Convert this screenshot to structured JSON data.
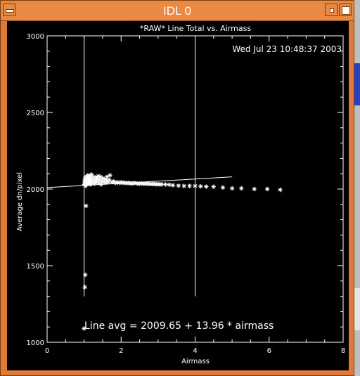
{
  "window": {
    "title": "IDL 0",
    "menu_icon": "window-menu-icon",
    "minimize_icon": "minimize-icon",
    "maximize_icon": "maximize-icon"
  },
  "plot": {
    "timestamp": "Wed Jul 23 10:48:37 2003",
    "annotation": "Line avg = 2009.65 + 13.96 * airmass"
  },
  "chart_data": {
    "type": "scatter",
    "title": "*RAW* Line Total vs. Airmass",
    "xlabel": "Airmass",
    "ylabel": "Average dn/pixel",
    "xlim": [
      0,
      8
    ],
    "ylim": [
      1000,
      3000
    ],
    "x_ticks": [
      "0",
      "2",
      "4",
      "6",
      "8"
    ],
    "y_ticks": [
      "1000",
      "1500",
      "2000",
      "2500",
      "3000"
    ],
    "vertical_lines": [
      1.0,
      4.0
    ],
    "fit_line": {
      "intercept": 2009.65,
      "slope": 13.96,
      "x_range": [
        0,
        5
      ]
    },
    "series": [
      {
        "marker": "asterisk",
        "points": [
          [
            1.0,
            1090
          ],
          [
            1.02,
            1360
          ],
          [
            1.03,
            1440
          ],
          [
            1.05,
            1890
          ],
          [
            1.0,
            2030
          ],
          [
            1.01,
            2050
          ],
          [
            1.02,
            2070
          ],
          [
            1.03,
            2040
          ],
          [
            1.04,
            2020
          ],
          [
            1.05,
            2060
          ],
          [
            1.06,
            2080
          ],
          [
            1.07,
            2030
          ],
          [
            1.08,
            2045
          ],
          [
            1.09,
            2065
          ],
          [
            1.1,
            2090
          ],
          [
            1.11,
            2035
          ],
          [
            1.12,
            2055
          ],
          [
            1.13,
            2075
          ],
          [
            1.14,
            2040
          ],
          [
            1.15,
            2060
          ],
          [
            1.16,
            2085
          ],
          [
            1.17,
            2030
          ],
          [
            1.18,
            2050
          ],
          [
            1.19,
            2070
          ],
          [
            1.2,
            2095
          ],
          [
            1.22,
            2040
          ],
          [
            1.24,
            2060
          ],
          [
            1.26,
            2080
          ],
          [
            1.28,
            2035
          ],
          [
            1.3,
            2055
          ],
          [
            1.32,
            2075
          ],
          [
            1.34,
            2045
          ],
          [
            1.36,
            2065
          ],
          [
            1.38,
            2085
          ],
          [
            1.4,
            2040
          ],
          [
            1.42,
            2060
          ],
          [
            1.44,
            2080
          ],
          [
            1.46,
            2030
          ],
          [
            1.48,
            2050
          ],
          [
            1.5,
            2070
          ],
          [
            1.52,
            2045
          ],
          [
            1.55,
            2065
          ],
          [
            1.58,
            2040
          ],
          [
            1.6,
            2060
          ],
          [
            1.62,
            2080
          ],
          [
            1.65,
            2045
          ],
          [
            1.68,
            2060
          ],
          [
            1.7,
            2090
          ],
          [
            1.75,
            2045
          ],
          [
            1.8,
            2050
          ],
          [
            1.85,
            2040
          ],
          [
            1.9,
            2045
          ],
          [
            1.95,
            2040
          ],
          [
            2.0,
            2045
          ],
          [
            2.05,
            2040
          ],
          [
            2.1,
            2042
          ],
          [
            2.15,
            2038
          ],
          [
            2.2,
            2040
          ],
          [
            2.25,
            2038
          ],
          [
            2.3,
            2036
          ],
          [
            2.35,
            2040
          ],
          [
            2.4,
            2038
          ],
          [
            2.45,
            2036
          ],
          [
            2.5,
            2035
          ],
          [
            2.55,
            2037
          ],
          [
            2.6,
            2035
          ],
          [
            2.65,
            2034
          ],
          [
            2.7,
            2036
          ],
          [
            2.75,
            2033
          ],
          [
            2.8,
            2034
          ],
          [
            2.85,
            2032
          ],
          [
            2.9,
            2033
          ],
          [
            2.95,
            2031
          ],
          [
            3.0,
            2032
          ],
          [
            3.05,
            2030
          ],
          [
            3.1,
            2031
          ],
          [
            3.2,
            2030
          ],
          [
            3.3,
            2028
          ],
          [
            3.4,
            2025
          ],
          [
            3.55,
            2022
          ],
          [
            3.7,
            2020
          ],
          [
            3.85,
            2020
          ],
          [
            4.0,
            2020
          ],
          [
            4.15,
            2018
          ],
          [
            4.3,
            2016
          ],
          [
            4.5,
            2015
          ],
          [
            4.75,
            2010
          ],
          [
            5.0,
            2005
          ],
          [
            5.25,
            2005
          ],
          [
            5.6,
            2000
          ],
          [
            5.95,
            2000
          ],
          [
            6.3,
            1995
          ]
        ]
      }
    ]
  }
}
